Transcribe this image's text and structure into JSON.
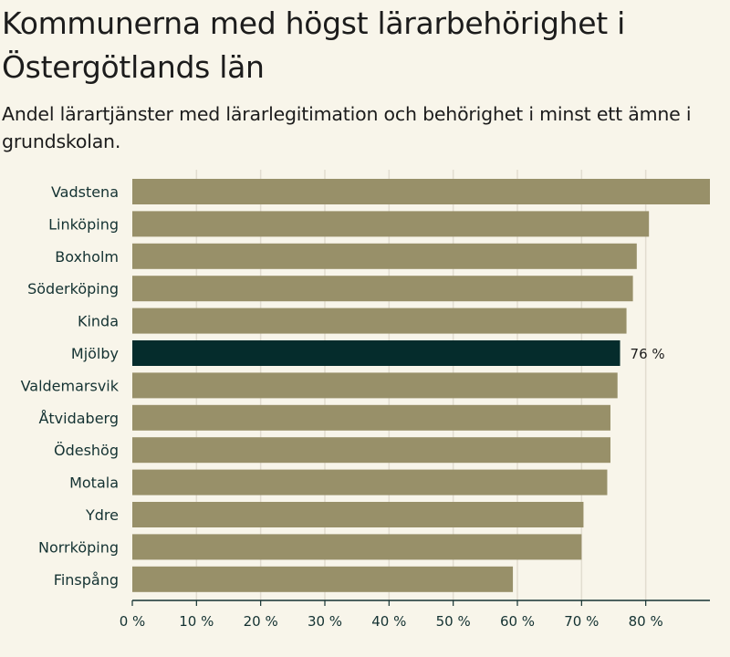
{
  "chart_data": {
    "type": "bar",
    "orientation": "horizontal",
    "title": "Kommunerna med högst lärarbehörighet i Östergötlands län",
    "subtitle": "Andel lärartjänster med lärarlegitimation och behörighet i minst ett ämne i grundskolan.",
    "categories": [
      "Vadstena",
      "Linköping",
      "Boxholm",
      "Söderköping",
      "Kinda",
      "Mjölby",
      "Valdemarsvik",
      "Åtvidaberg",
      "Ödeshög",
      "Motala",
      "Ydre",
      "Norrköping",
      "Finspång"
    ],
    "values": [
      90,
      80.5,
      78.6,
      78,
      77,
      76,
      75.6,
      74.5,
      74.5,
      74,
      70.3,
      70,
      59.3
    ],
    "highlight": "Mjölby",
    "highlight_label": "76 %",
    "xlim": [
      0,
      90
    ],
    "xticks": [
      0,
      10,
      20,
      30,
      40,
      50,
      60,
      70,
      80
    ],
    "xtick_labels": [
      "0 %",
      "10 %",
      "20 %",
      "30 %",
      "40 %",
      "50 %",
      "60 %",
      "70 %",
      "80 %"
    ],
    "xlabel": "",
    "ylabel": "",
    "grid": true,
    "colors": {
      "bar": "#989069",
      "highlight": "#052c2c",
      "grid": "#e2ddd0",
      "axis": "#143232"
    }
  }
}
